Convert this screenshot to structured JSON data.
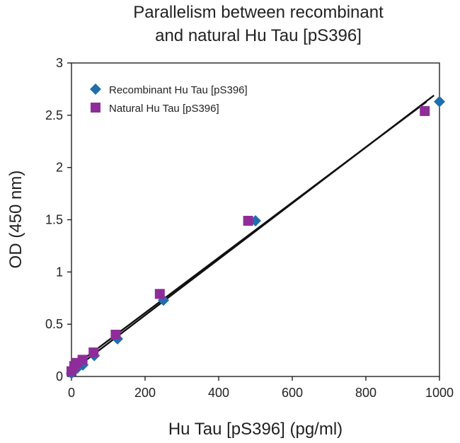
{
  "chart_data": {
    "type": "scatter",
    "title": [
      "Parallelism between recombinant",
      "and natural Hu Tau [pS396]"
    ],
    "xlabel": "Hu Tau [pS396] (pg/ml)",
    "ylabel": "OD (450 nm)",
    "xlim": [
      0,
      1000
    ],
    "ylim": [
      0,
      3
    ],
    "xticks": [
      "0",
      "200",
      "400",
      "600",
      "800",
      "1000"
    ],
    "yticks": [
      "0",
      "0.5",
      "1",
      "1.5",
      "2",
      "2.5",
      "3"
    ],
    "grid": false,
    "legend": "top-left",
    "series": [
      {
        "name": "Recombinant Hu Tau [pS396]",
        "marker": "diamond",
        "color": "#1f6fae",
        "x": [
          0,
          8,
          16,
          31,
          62,
          125,
          250,
          500,
          1000
        ],
        "y": [
          0.03,
          0.06,
          0.08,
          0.11,
          0.2,
          0.36,
          0.73,
          1.49,
          2.63
        ],
        "fit": [
          [
            0,
            0.05
          ],
          [
            985,
            2.69
          ]
        ]
      },
      {
        "name": "Natural Hu Tau [pS396]",
        "marker": "square",
        "color": "#8e2d9a",
        "x": [
          0,
          7.5,
          15,
          30,
          60,
          120,
          240,
          480,
          960
        ],
        "y": [
          0.05,
          0.1,
          0.13,
          0.16,
          0.23,
          0.4,
          0.79,
          1.49,
          2.54
        ],
        "fit": [
          [
            0,
            0.08
          ],
          [
            965,
            2.63
          ]
        ]
      }
    ]
  }
}
